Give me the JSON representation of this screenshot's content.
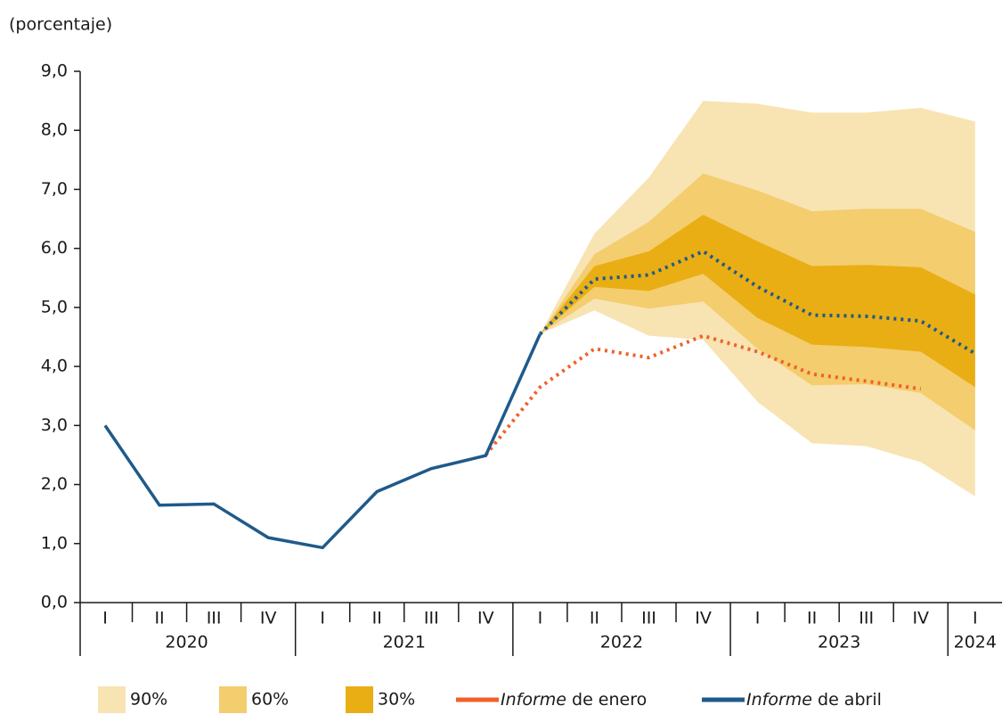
{
  "chart_data": {
    "type": "fan",
    "ylabel": "(porcentaje)",
    "categories": [
      "I",
      "II",
      "III",
      "IV",
      "I",
      "II",
      "III",
      "IV",
      "I",
      "II",
      "III",
      "IV",
      "I",
      "II",
      "III",
      "IV",
      "I"
    ],
    "groups": [
      "2020",
      "2021",
      "2022",
      "2023",
      "2024"
    ],
    "ylim": [
      0,
      9
    ],
    "yticks": [
      {
        "value": 0,
        "label": "0,0"
      },
      {
        "value": 1,
        "label": "1,0"
      },
      {
        "value": 2,
        "label": "2,0"
      },
      {
        "value": 3,
        "label": "3,0"
      },
      {
        "value": 4,
        "label": "4,0"
      },
      {
        "value": 5,
        "label": "5,0"
      },
      {
        "value": 6,
        "label": "6,0"
      },
      {
        "value": 7,
        "label": "7,0"
      },
      {
        "value": 8,
        "label": "8,0"
      },
      {
        "value": 9,
        "label": "9,0"
      }
    ],
    "bands": [
      {
        "name": "90%",
        "color": "#f8e3b2",
        "upper": [
          null,
          null,
          null,
          null,
          null,
          null,
          null,
          null,
          4.55,
          6.25,
          7.2,
          8.5,
          8.45,
          8.3,
          8.3,
          8.38,
          8.15
        ],
        "lower": [
          null,
          null,
          null,
          null,
          null,
          null,
          null,
          null,
          4.55,
          4.95,
          4.52,
          4.45,
          3.4,
          2.7,
          2.65,
          2.38,
          1.8
        ]
      },
      {
        "name": "60%",
        "color": "#f3cd6e",
        "upper": [
          null,
          null,
          null,
          null,
          null,
          null,
          null,
          null,
          4.55,
          5.9,
          6.45,
          7.27,
          6.98,
          6.63,
          6.67,
          6.67,
          6.28
        ],
        "lower": [
          null,
          null,
          null,
          null,
          null,
          null,
          null,
          null,
          4.55,
          5.15,
          4.98,
          5.1,
          4.3,
          3.68,
          3.7,
          3.55,
          2.92
        ]
      },
      {
        "name": "30%",
        "color": "#e9ae14",
        "upper": [
          null,
          null,
          null,
          null,
          null,
          null,
          null,
          null,
          4.55,
          5.7,
          5.95,
          6.57,
          6.12,
          5.7,
          5.72,
          5.68,
          5.22
        ],
        "lower": [
          null,
          null,
          null,
          null,
          null,
          null,
          null,
          null,
          4.55,
          5.35,
          5.28,
          5.57,
          4.82,
          4.37,
          4.33,
          4.25,
          3.65
        ]
      }
    ],
    "series": [
      {
        "name": "Informe de enero",
        "color": "#f0602a",
        "dotted_from": 0,
        "values": [
          null,
          null,
          null,
          null,
          null,
          null,
          null,
          2.5,
          3.65,
          4.3,
          4.15,
          4.52,
          4.25,
          3.87,
          3.75,
          3.62,
          null
        ]
      },
      {
        "name": "Informe de abril",
        "color": "#1f5a8a",
        "dotted_from": 8,
        "values": [
          3.0,
          1.65,
          1.67,
          1.1,
          0.93,
          1.88,
          2.27,
          2.49,
          4.55,
          5.48,
          5.55,
          5.95,
          5.35,
          4.87,
          4.85,
          4.77,
          4.22
        ]
      }
    ]
  }
}
